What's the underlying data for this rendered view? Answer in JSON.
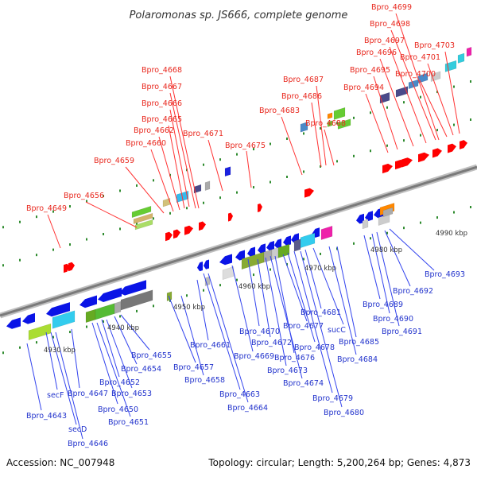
{
  "title": "Polaromonas sp. JS666, complete genome",
  "footer": {
    "accession": "Accession: NC_007948",
    "summary": "Topology: circular; Length: 5,200,264 bp; Genes: 4,873"
  },
  "axis": {
    "kbp_marks": [
      "4930 kbp",
      "4940 kbp",
      "4950 kbp",
      "4960 kbp",
      "4970 kbp",
      "4980 kbp",
      "4990 kbp"
    ]
  },
  "labels_top": [
    "Bpro_4649",
    "Bpro_4656",
    "Bpro_4659",
    "Bpro_4660",
    "Bpro_4662",
    "Bpro_4665",
    "Bpro_4666",
    "Bpro_4667",
    "Bpro_4668",
    "Bpro_4671",
    "Bpro_4675",
    "Bpro_4683",
    "Bpro_4686",
    "Bpro_4687",
    "Bpro_4688",
    "Bpro_4694",
    "Bpro_4695",
    "Bpro_4696",
    "Bpro_4697",
    "Bpro_4698",
    "Bpro_4699",
    "Bpro_4700",
    "Bpro_4701",
    "Bpro_4703"
  ],
  "labels_bottom": [
    "secF",
    "secD",
    "Bpro_4643",
    "Bpro_4646",
    "Bpro_4647",
    "Bpro_4650",
    "Bpro_4651",
    "Bpro_4652",
    "Bpro_4653",
    "Bpro_4654",
    "Bpro_4655",
    "Bpro_4657",
    "Bpro_4658",
    "Bpro_4661",
    "Bpro_4663",
    "Bpro_4664",
    "Bpro_4669",
    "Bpro_4670",
    "Bpro_4672",
    "Bpro_4673",
    "Bpro_4674",
    "Bpro_4676",
    "Bpro_4677",
    "Bpro_4678",
    "Bpro_4679",
    "Bpro_4680",
    "Bpro_4681",
    "sucC",
    "Bpro_4684",
    "Bpro_4685",
    "Bpro_4689",
    "Bpro_4690",
    "Bpro_4691",
    "Bpro_4692",
    "Bpro_4693"
  ],
  "colors": {
    "forward_genes": "#ff0000",
    "reverse_genes": "#0a14e6",
    "top_label_text": "#e8281e",
    "bottom_label_text": "#2233cc",
    "top_connector": "#ff3333",
    "bottom_connector": "#3344ee",
    "backbone": "#8c8c8c",
    "tick_marks": "#2e8b2e"
  }
}
